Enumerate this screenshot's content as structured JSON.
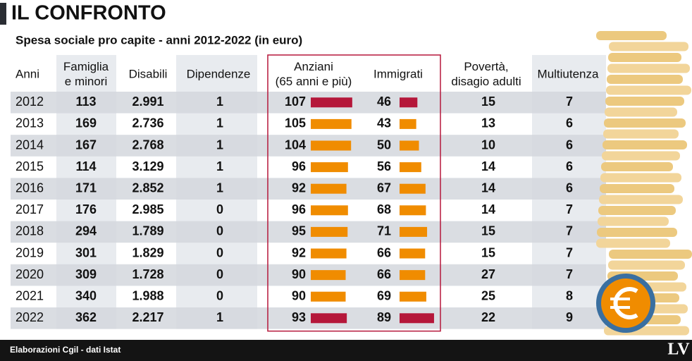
{
  "header": {
    "title": "IL CONFRONTO",
    "subtitle": "Spesa sociale pro capite - anni 2012-2022 (in euro)"
  },
  "table": {
    "columns": [
      [
        "Anni"
      ],
      [
        "Famiglia",
        "e minori"
      ],
      [
        "Disabili"
      ],
      [
        "Dipendenze"
      ],
      [
        "Anziani",
        "(65 anni e più)"
      ],
      [
        "Immigrati"
      ],
      [
        "Povertà,",
        "disagio adulti"
      ],
      [
        "Multiutenza"
      ]
    ],
    "rows": [
      [
        2012,
        113,
        "2.991",
        1,
        107,
        46,
        15,
        7
      ],
      [
        2013,
        169,
        "2.736",
        1,
        105,
        43,
        13,
        6
      ],
      [
        2014,
        167,
        "2.768",
        1,
        104,
        50,
        10,
        6
      ],
      [
        2015,
        114,
        "3.129",
        1,
        96,
        56,
        14,
        6
      ],
      [
        2016,
        171,
        "2.852",
        1,
        92,
        67,
        14,
        6
      ],
      [
        2017,
        176,
        "2.985",
        0,
        96,
        68,
        14,
        7
      ],
      [
        2018,
        294,
        "1.789",
        0,
        95,
        71,
        15,
        7
      ],
      [
        2019,
        301,
        "1.829",
        0,
        92,
        66,
        15,
        7
      ],
      [
        2020,
        309,
        "1.728",
        0,
        90,
        66,
        27,
        7
      ],
      [
        2021,
        340,
        "1.988",
        0,
        90,
        69,
        25,
        8
      ],
      [
        2022,
        362,
        "2.217",
        1,
        93,
        89,
        22,
        9
      ]
    ]
  },
  "footer": {
    "source": "Elaborazioni Cgil - dati Istat",
    "logo": "LV"
  }
}
